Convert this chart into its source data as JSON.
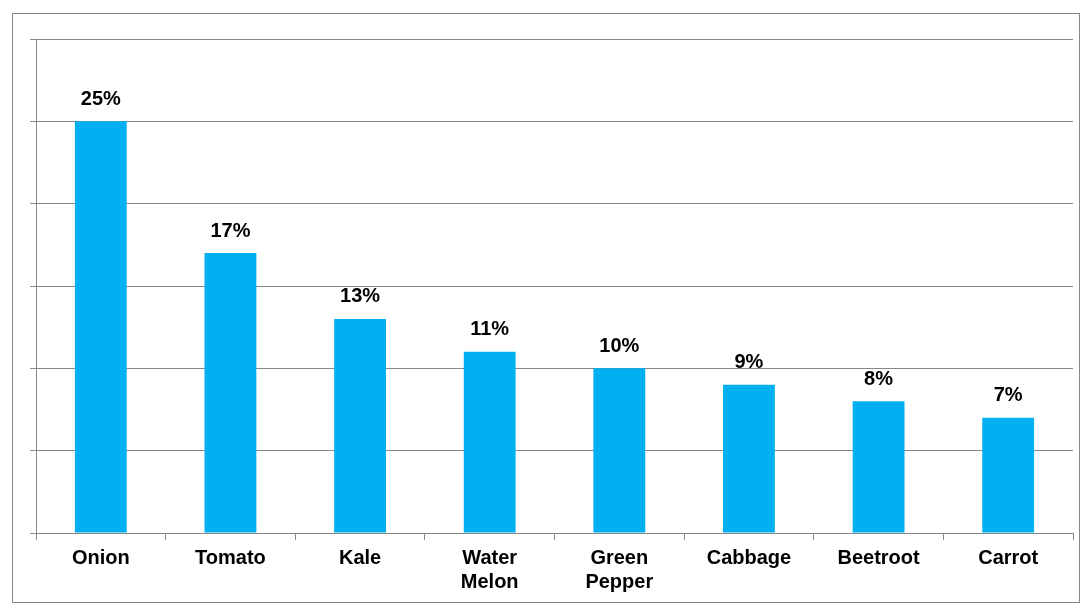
{
  "chart_data": {
    "type": "bar",
    "categories": [
      "Onion",
      "Tomato",
      "Kale",
      "Water Melon",
      "Green Pepper",
      "Cabbage",
      "Beetroot",
      "Carrot"
    ],
    "values": [
      25,
      17,
      13,
      11,
      10,
      9,
      8,
      7
    ],
    "value_labels": [
      "25%",
      "17%",
      "13%",
      "11%",
      "10%",
      "9%",
      "8%",
      "7%"
    ],
    "color": "#00b0f0",
    "ylim": [
      0,
      30
    ],
    "yticks": [
      {
        "value": 0,
        "label": null
      },
      {
        "value": 5,
        "label": null
      },
      {
        "value": 10,
        "label": null
      },
      {
        "value": 15,
        "label": null
      },
      {
        "value": 20,
        "label": null
      },
      {
        "value": 25,
        "label": null
      },
      {
        "value": 30,
        "label": null
      }
    ],
    "tick_labels": "x",
    "grid": "y",
    "legend": false
  }
}
